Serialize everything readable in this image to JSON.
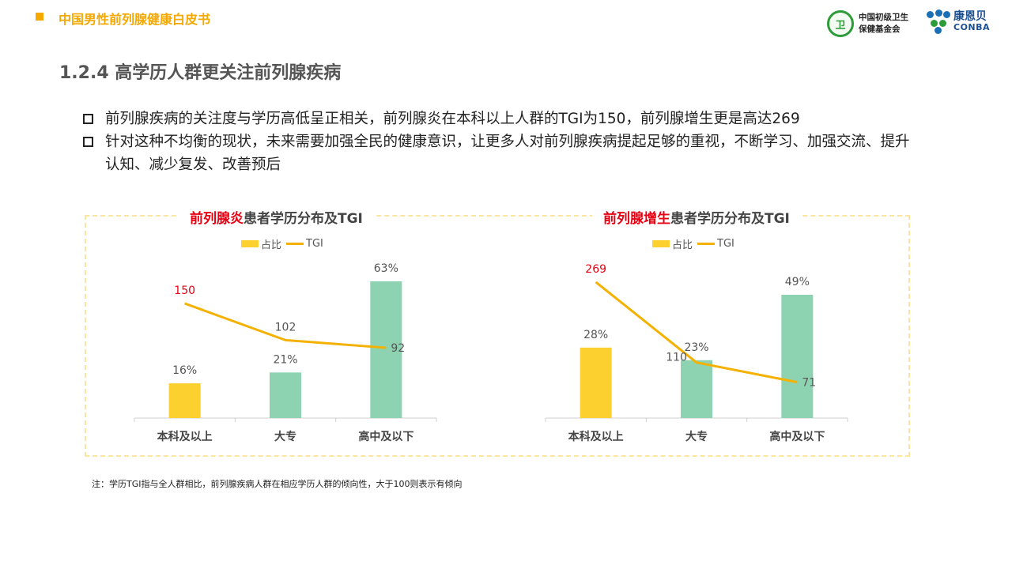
{
  "header": {
    "title": "中国男性前列腺健康白皮书"
  },
  "logos": {
    "foundation": {
      "icon": "wheat-emblem",
      "line1": "中国初级卫生",
      "line2": "保健基金会"
    },
    "brand": {
      "icon": "people-icon",
      "cn": "康恩贝",
      "en": "CONBA"
    }
  },
  "section_title": "1.2.4 高学历人群更关注前列腺疾病",
  "bullets": [
    "前列腺疾病的关注度与学历高低呈正相关，前列腺炎在本科以上人群的TGI为150，前列腺增生更是高达269",
    "针对这种不均衡的现状，未来需要加强全民的健康意识，让更多人对前列腺疾病提起足够的重视，不断学习、加强交流、提升认知、减少复发、改善预后"
  ],
  "colors": {
    "accent": "#f5a800",
    "bar_highlight": "#fcd02e",
    "bar_normal": "#8dd3b1",
    "tgi_line": "#f5b100",
    "highlight_text": "#e60012",
    "frame": "#fce5a1"
  },
  "chart_data": [
    {
      "type": "bar",
      "title_highlight": "前列腺炎",
      "title_rest": "患者学历分布及TGI",
      "legend": {
        "bar": "占比",
        "line": "TGI"
      },
      "categories": [
        "本科及以上",
        "大专",
        "高中及以下"
      ],
      "series": [
        {
          "name": "占比",
          "type": "bar",
          "values": [
            16,
            21,
            63
          ],
          "labels": [
            "16%",
            "21%",
            "63%"
          ]
        },
        {
          "name": "TGI",
          "type": "line",
          "values": [
            150,
            102,
            92
          ],
          "labels": [
            "150",
            "102",
            "92"
          ]
        }
      ],
      "ylim_bar": [
        0,
        63
      ],
      "ylim_line": [
        0,
        300
      ]
    },
    {
      "type": "bar",
      "title_highlight": "前列腺增生",
      "title_rest": "患者学历分布及TGI",
      "legend": {
        "bar": "占比",
        "line": "TGI"
      },
      "categories": [
        "本科及以上",
        "大专",
        "高中及以下"
      ],
      "series": [
        {
          "name": "占比",
          "type": "bar",
          "values": [
            28,
            23,
            49
          ],
          "labels": [
            "28%",
            "23%",
            "49%"
          ]
        },
        {
          "name": "TGI",
          "type": "line",
          "values": [
            269,
            110,
            71
          ],
          "labels": [
            "269",
            "110",
            "71"
          ]
        }
      ],
      "ylim_bar": [
        0,
        49
      ],
      "ylim_line": [
        0,
        269
      ]
    }
  ],
  "note": "注：学历TGI指与全人群相比，前列腺疾病人群在相应学历人群的倾向性，大于100则表示有倾向"
}
